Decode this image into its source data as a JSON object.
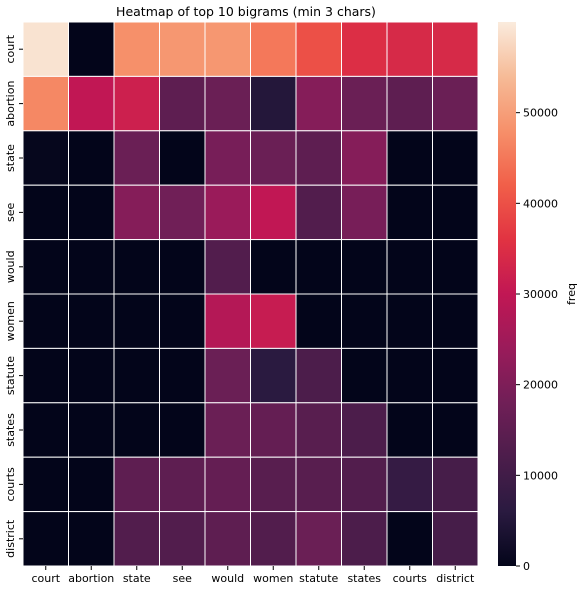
{
  "chart_data": {
    "type": "heatmap",
    "title": "Heatmap of top 10 bigrams (min 3 chars)",
    "x_categories": [
      "court",
      "abortion",
      "state",
      "see",
      "would",
      "women",
      "statute",
      "states",
      "courts",
      "district"
    ],
    "y_categories": [
      "court",
      "abortion",
      "state",
      "see",
      "would",
      "women",
      "statute",
      "states",
      "courts",
      "district"
    ],
    "values": [
      [
        59000,
        0,
        48000,
        49000,
        49000,
        45000,
        40000,
        35000,
        34000,
        34000
      ],
      [
        47000,
        30000,
        32000,
        15000,
        17000,
        5000,
        21000,
        17000,
        15000,
        17000
      ],
      [
        500,
        0,
        17000,
        0,
        19000,
        17000,
        15000,
        21000,
        0,
        0
      ],
      [
        0,
        0,
        21000,
        18000,
        24000,
        30000,
        13000,
        19000,
        0,
        0
      ],
      [
        0,
        0,
        0,
        0,
        13000,
        0,
        0,
        0,
        0,
        0
      ],
      [
        0,
        0,
        0,
        0,
        28000,
        31000,
        0,
        0,
        0,
        0
      ],
      [
        0,
        0,
        0,
        0,
        17000,
        6000,
        12000,
        0,
        0,
        0
      ],
      [
        0,
        0,
        0,
        0,
        17000,
        16000,
        14000,
        12000,
        0,
        0
      ],
      [
        0,
        0,
        15000,
        15000,
        16000,
        14000,
        14000,
        13000,
        8000,
        11000
      ],
      [
        0,
        0,
        13000,
        13000,
        15000,
        13000,
        17000,
        12000,
        0,
        11000
      ]
    ],
    "colorbar": {
      "label": "freq",
      "min": 0,
      "max": 60000,
      "ticks": [
        0,
        10000,
        20000,
        30000,
        40000,
        50000
      ]
    },
    "colormap": [
      "#03051a",
      "#2a1a40",
      "#4c1d4b",
      "#701f57",
      "#9a1b5a",
      "#c11754",
      "#e13342",
      "#f15f49",
      "#f6906a",
      "#f6bb97",
      "#faebdd"
    ],
    "cell_border_color": "#ffffff"
  }
}
